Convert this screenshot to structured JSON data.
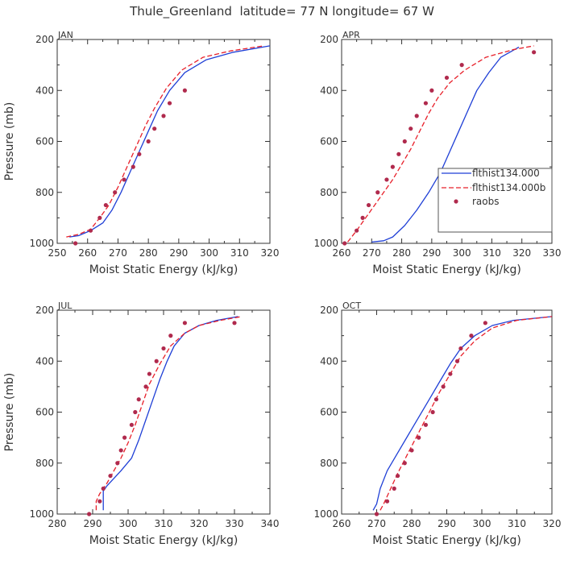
{
  "figure_title": "Thule_Greenland  latitude= 77 N longitude= 67 W",
  "legend": {
    "entries": [
      {
        "label": "flthist134.000",
        "style": "solid",
        "color": "#1f3fd6"
      },
      {
        "label": "flthist134.000b",
        "style": "dashed",
        "color": "#e8202a"
      },
      {
        "label": "raobs",
        "style": "dot",
        "color": "#b02a4d"
      }
    ]
  },
  "chart_data": [
    {
      "type": "line",
      "panel": "JAN",
      "xlabel": "Moist Static Energy (kJ/kg)",
      "ylabel": "Pressure (mb)",
      "xlim": [
        250,
        320
      ],
      "ylim": [
        1000,
        200
      ],
      "xticks": [
        250,
        260,
        270,
        280,
        290,
        300,
        310,
        320
      ],
      "yticks": [
        200,
        400,
        600,
        800,
        1000
      ],
      "series": [
        {
          "name": "flthist134.000",
          "x": [
            254,
            257,
            261,
            265,
            268,
            271,
            274,
            277,
            280,
            283,
            287,
            292,
            299,
            308,
            320
          ],
          "y": [
            975,
            970,
            950,
            920,
            870,
            800,
            720,
            640,
            560,
            480,
            400,
            330,
            280,
            250,
            225
          ]
        },
        {
          "name": "flthist134.000b",
          "x": [
            253,
            257,
            261,
            264,
            267,
            270,
            273,
            276,
            279,
            282,
            286,
            291,
            298,
            307,
            318
          ],
          "y": [
            975,
            965,
            945,
            900,
            850,
            780,
            700,
            620,
            540,
            470,
            390,
            320,
            270,
            245,
            225
          ]
        },
        {
          "name": "raobs",
          "x": [
            256,
            261,
            264,
            266,
            269,
            272,
            275,
            277,
            280,
            282,
            285,
            287,
            292
          ],
          "y": [
            1000,
            950,
            900,
            850,
            800,
            750,
            700,
            650,
            600,
            550,
            500,
            450,
            400
          ]
        }
      ]
    },
    {
      "type": "line",
      "panel": "APR",
      "xlabel": "Moist Static Energy (kJ/kg)",
      "ylabel": "",
      "xlim": [
        260,
        330
      ],
      "ylim": [
        1000,
        200
      ],
      "xticks": [
        260,
        270,
        280,
        290,
        300,
        310,
        320,
        330
      ],
      "yticks": [
        200,
        400,
        600,
        800,
        1000
      ],
      "series": [
        {
          "name": "flthist134.000",
          "x": [
            270,
            274,
            277,
            281,
            285,
            289,
            293,
            296,
            299,
            302,
            305,
            309,
            313,
            319
          ],
          "y": [
            995,
            990,
            975,
            930,
            870,
            800,
            720,
            640,
            560,
            480,
            400,
            330,
            270,
            230
          ]
        },
        {
          "name": "flthist134.000b",
          "x": [
            262,
            265,
            268,
            271,
            274,
            277,
            280,
            283,
            286,
            289,
            292,
            296,
            301,
            308,
            317,
            324
          ],
          "y": [
            995,
            950,
            900,
            850,
            800,
            750,
            690,
            630,
            560,
            490,
            430,
            370,
            320,
            270,
            240,
            225
          ]
        },
        {
          "name": "raobs",
          "x": [
            261,
            265,
            267,
            269,
            272,
            275,
            277,
            279,
            281,
            283,
            285,
            288,
            290,
            295,
            300,
            324
          ],
          "y": [
            1000,
            950,
            900,
            850,
            800,
            750,
            700,
            650,
            600,
            550,
            500,
            450,
            400,
            350,
            300,
            250
          ]
        }
      ]
    },
    {
      "type": "line",
      "panel": "JUL",
      "xlabel": "Moist Static Energy (kJ/kg)",
      "ylabel": "Pressure (mb)",
      "xlim": [
        280,
        340
      ],
      "ylim": [
        1000,
        200
      ],
      "xticks": [
        280,
        290,
        300,
        310,
        320,
        330,
        340
      ],
      "yticks": [
        200,
        400,
        600,
        800,
        1000
      ],
      "series": [
        {
          "name": "flthist134.000",
          "x": [
            293,
            293,
            293,
            294,
            296,
            298,
            301,
            303,
            305,
            307,
            309,
            311,
            313,
            316,
            320,
            325,
            331
          ],
          "y": [
            985,
            950,
            910,
            890,
            860,
            830,
            780,
            710,
            630,
            550,
            470,
            400,
            340,
            290,
            260,
            240,
            225
          ]
        },
        {
          "name": "flthist134.000b",
          "x": [
            291,
            291,
            292,
            294,
            296,
            298,
            300,
            302,
            304,
            306,
            309,
            312,
            316,
            320,
            326,
            332
          ],
          "y": [
            985,
            950,
            920,
            880,
            830,
            780,
            720,
            650,
            570,
            490,
            410,
            340,
            290,
            260,
            240,
            225
          ]
        },
        {
          "name": "raobs",
          "x": [
            289,
            292,
            293,
            295,
            297,
            298,
            299,
            301,
            302,
            303,
            305,
            306,
            308,
            310,
            312,
            316,
            330
          ],
          "y": [
            1000,
            950,
            900,
            850,
            800,
            750,
            700,
            650,
            600,
            550,
            500,
            450,
            400,
            350,
            300,
            250,
            250
          ]
        }
      ]
    },
    {
      "type": "line",
      "panel": "OCT",
      "xlabel": "Moist Static Energy (kJ/kg)",
      "ylabel": "",
      "xlim": [
        260,
        320
      ],
      "ylim": [
        1000,
        200
      ],
      "xticks": [
        260,
        270,
        280,
        290,
        300,
        310,
        320
      ],
      "yticks": [
        200,
        400,
        600,
        800,
        1000
      ],
      "series": [
        {
          "name": "flthist134.000",
          "x": [
            269,
            270,
            271,
            273,
            276,
            279,
            282,
            285,
            288,
            291,
            294,
            298,
            303,
            309,
            320
          ],
          "y": [
            985,
            960,
            900,
            830,
            760,
            690,
            620,
            550,
            480,
            410,
            350,
            300,
            260,
            240,
            225
          ]
        },
        {
          "name": "flthist134.000b",
          "x": [
            271,
            272,
            274,
            276,
            279,
            282,
            285,
            288,
            291,
            294,
            298,
            303,
            310,
            320
          ],
          "y": [
            985,
            960,
            900,
            840,
            760,
            680,
            600,
            520,
            450,
            380,
            320,
            270,
            240,
            225
          ]
        },
        {
          "name": "raobs",
          "x": [
            270,
            273,
            275,
            276,
            278,
            280,
            282,
            284,
            286,
            287,
            289,
            291,
            293,
            294,
            297,
            301
          ],
          "y": [
            1000,
            950,
            900,
            850,
            800,
            750,
            700,
            650,
            600,
            550,
            500,
            450,
            400,
            350,
            300,
            250
          ]
        }
      ]
    }
  ]
}
